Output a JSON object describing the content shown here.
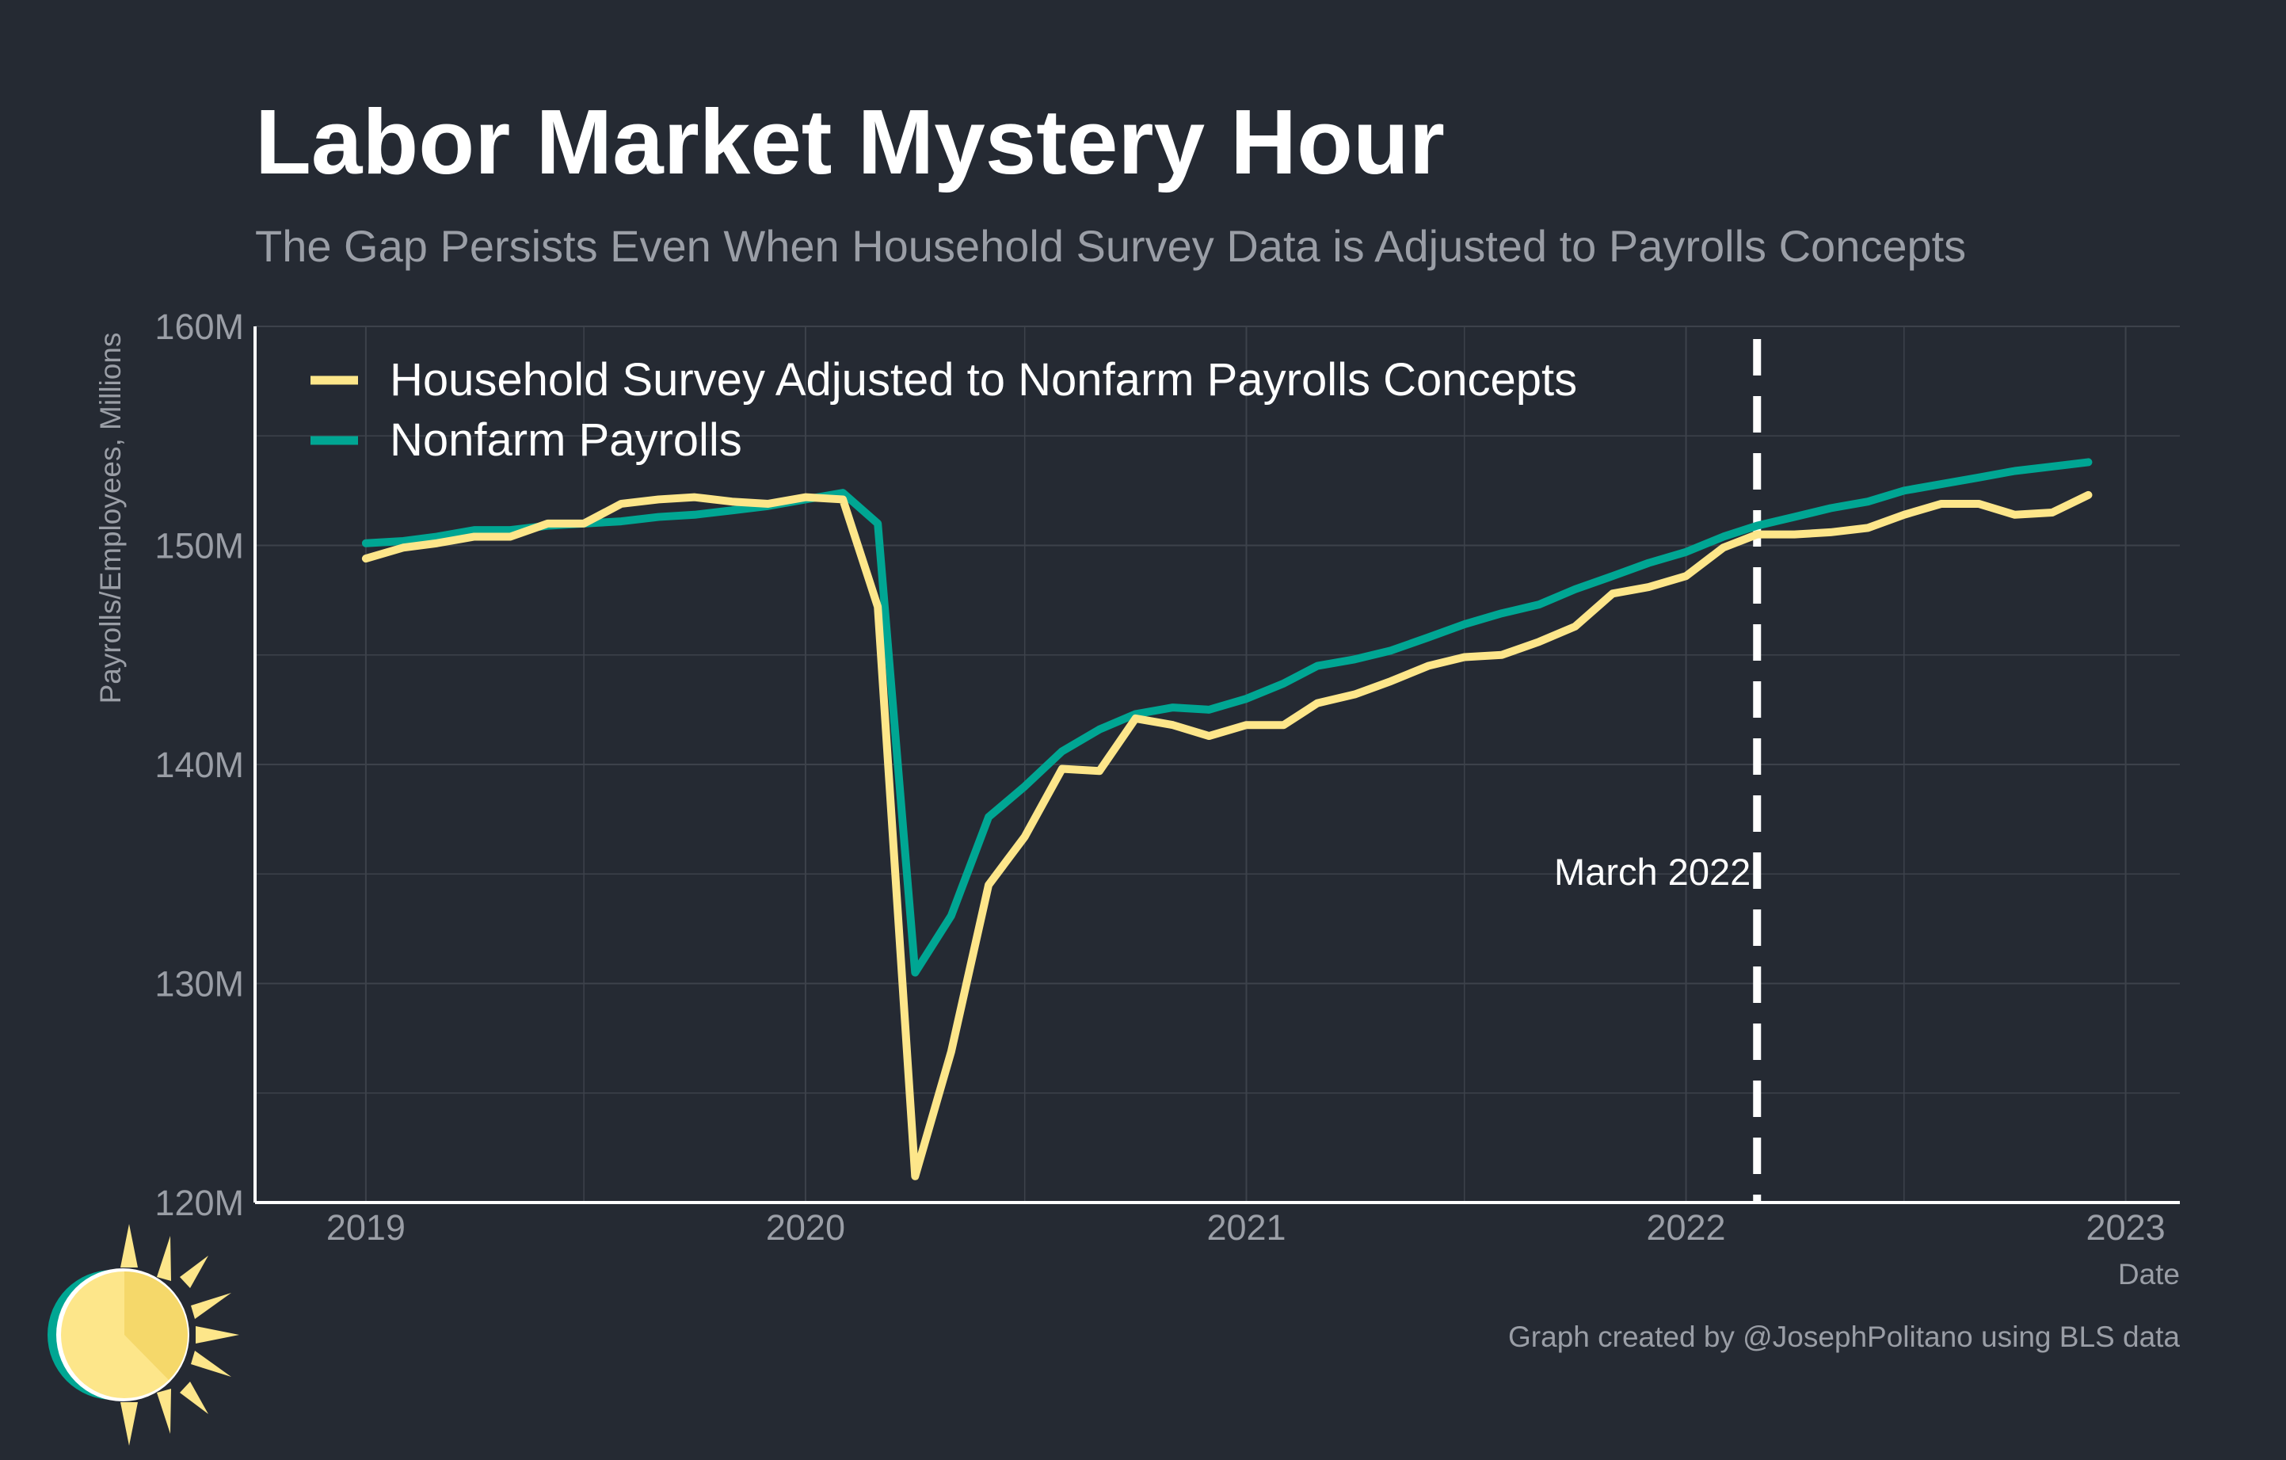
{
  "colors": {
    "background": "#252a33",
    "grid": "#3d424b",
    "axis": "#ffffff",
    "tick_text": "#9a9ea6",
    "title": "#ffffff",
    "subtitle": "#9a9ea6",
    "household": "#fde68a",
    "payrolls": "#00a693",
    "marker": "#ffffff"
  },
  "chart_data": {
    "type": "line",
    "title": "Labor Market Mystery Hour",
    "subtitle": "The Gap Persists Even When Household Survey Data is Adjusted to Payrolls Concepts",
    "xlabel": "Date",
    "ylabel": "Payrolls/Employees, Millions",
    "xlim": [
      "2018-10-01",
      "2023-02-15"
    ],
    "ylim": [
      120,
      160
    ],
    "x_ticks": [
      "2019-01-01",
      "2020-01-01",
      "2021-01-01",
      "2022-01-01",
      "2023-01-01"
    ],
    "x_tick_labels": [
      "2019",
      "2020",
      "2021",
      "2022",
      "2023"
    ],
    "y_ticks": [
      120,
      130,
      140,
      150,
      160
    ],
    "y_tick_labels": [
      "120M",
      "130M",
      "140M",
      "150M",
      "160M"
    ],
    "grid": true,
    "legend_position": "top-left",
    "x": [
      "2019-01",
      "2019-02",
      "2019-03",
      "2019-04",
      "2019-05",
      "2019-06",
      "2019-07",
      "2019-08",
      "2019-09",
      "2019-10",
      "2019-11",
      "2019-12",
      "2020-01",
      "2020-02",
      "2020-03",
      "2020-04",
      "2020-05",
      "2020-06",
      "2020-07",
      "2020-08",
      "2020-09",
      "2020-10",
      "2020-11",
      "2020-12",
      "2021-01",
      "2021-02",
      "2021-03",
      "2021-04",
      "2021-05",
      "2021-06",
      "2021-07",
      "2021-08",
      "2021-09",
      "2021-10",
      "2021-11",
      "2021-12",
      "2022-01",
      "2022-02",
      "2022-03",
      "2022-04",
      "2022-05",
      "2022-06",
      "2022-07",
      "2022-08",
      "2022-09",
      "2022-10",
      "2022-11",
      "2022-12"
    ],
    "series": [
      {
        "name": "Household Survey Adjusted to Nonfarm Payrolls Concepts",
        "color": "#fde68a",
        "values": [
          149.4,
          149.9,
          150.1,
          150.4,
          150.4,
          151.0,
          151.0,
          151.9,
          152.1,
          152.2,
          152.0,
          151.9,
          152.2,
          152.1,
          147.2,
          121.2,
          126.9,
          134.5,
          136.7,
          139.8,
          139.7,
          142.1,
          141.8,
          141.3,
          141.8,
          141.8,
          142.8,
          143.2,
          143.8,
          144.5,
          144.9,
          145.0,
          145.6,
          146.3,
          147.8,
          148.1,
          148.6,
          149.9,
          150.5,
          150.5,
          150.6,
          150.8,
          151.4,
          151.9,
          151.9,
          151.4,
          151.5,
          152.3
        ]
      },
      {
        "name": "Nonfarm Payrolls",
        "color": "#00a693",
        "values": [
          150.1,
          150.2,
          150.4,
          150.7,
          150.7,
          150.9,
          151.0,
          151.1,
          151.3,
          151.4,
          151.6,
          151.8,
          152.1,
          152.4,
          151.0,
          130.5,
          133.1,
          137.6,
          139.0,
          140.6,
          141.6,
          142.3,
          142.6,
          142.5,
          143.0,
          143.7,
          144.5,
          144.8,
          145.2,
          145.8,
          146.4,
          146.9,
          147.3,
          148.0,
          148.6,
          149.2,
          149.7,
          150.4,
          150.9,
          151.3,
          151.7,
          152.0,
          152.5,
          152.8,
          153.1,
          153.4,
          153.6,
          153.8
        ]
      }
    ],
    "annotations": [
      {
        "type": "vline",
        "x": "2022-03-01",
        "label": "March 2022",
        "style": "dashed"
      }
    ]
  },
  "credit": "Graph created by @JosephPolitano using BLS data",
  "logo": {
    "icon": "sun-icon"
  }
}
